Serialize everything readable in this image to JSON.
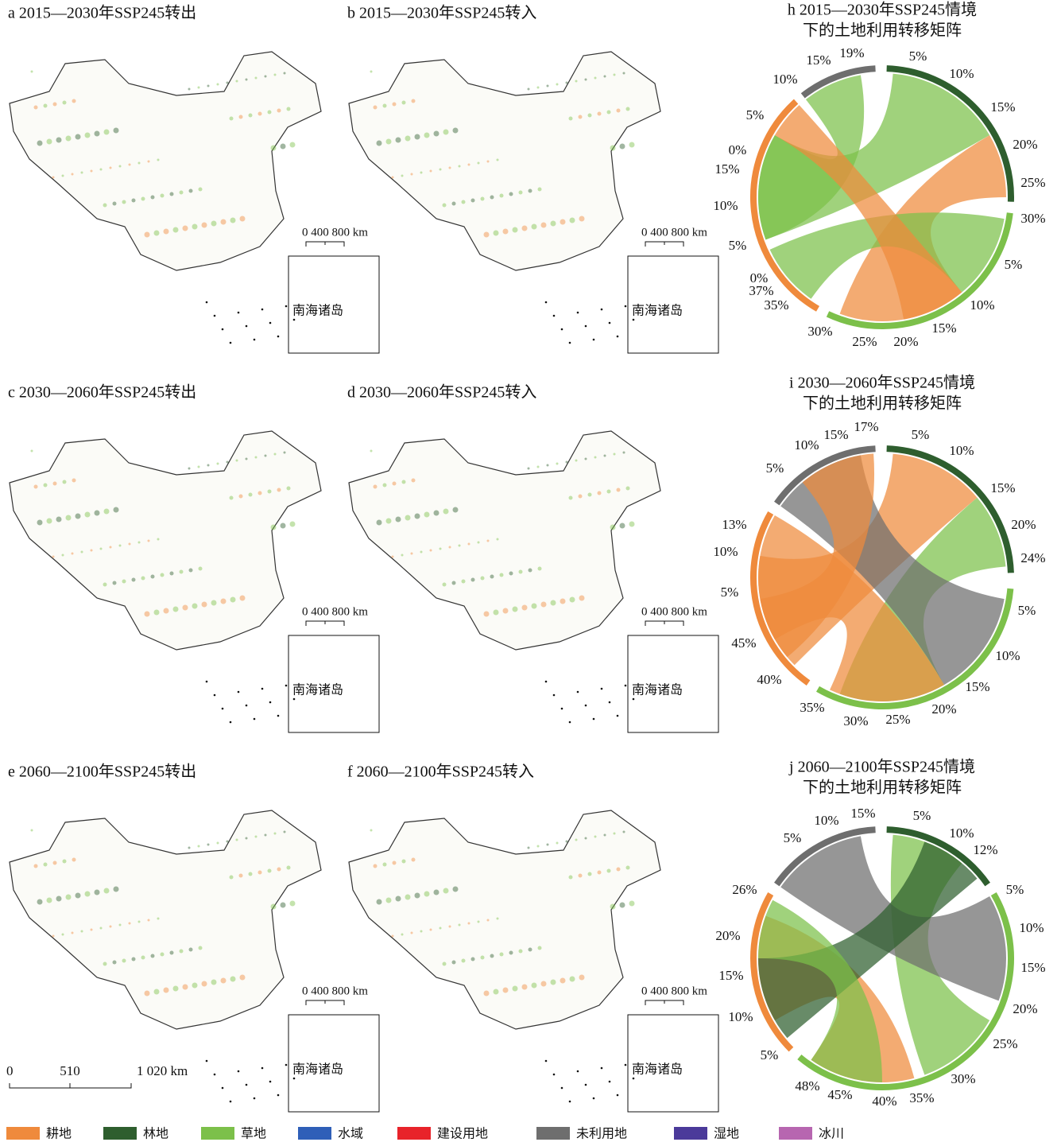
{
  "figure": {
    "maps": [
      {
        "label": "a 2015—2030年SSP245转出",
        "scale": "0 400 800 km",
        "inset": "南海诸岛"
      },
      {
        "label": "b 2015—2030年SSP245转入",
        "scale": "0 400 800 km",
        "inset": "南海诸岛"
      },
      {
        "label": "c 2030—2060年SSP245转出",
        "scale": "0 400 800 km",
        "inset": "南海诸岛"
      },
      {
        "label": "d 2030—2060年SSP245转入",
        "scale": "0 400 800 km",
        "inset": "南海诸岛"
      },
      {
        "label": "e 2060—2100年SSP245转出",
        "scale": "0 400 800 km",
        "inset": "南海诸岛"
      },
      {
        "label": "f 2060—2100年SSP245转入",
        "scale": "0 400 800 km",
        "inset": "南海诸岛"
      }
    ],
    "main_scale": [
      "0",
      "510",
      "1 020 km"
    ],
    "chords": [
      {
        "title": [
          "h 2015—2030年SSP245情境",
          "下的土地利用转移矩阵"
        ],
        "tick_labels": [
          "19%",
          "5%",
          "15%",
          "10%",
          "10%",
          "15%",
          "5%",
          "20%",
          "0%",
          "15%",
          "25%",
          "10%",
          "30%",
          "5%",
          "5%",
          "0%",
          "37%",
          "35%",
          "10%",
          "15%",
          "30%",
          "25%",
          "20%"
        ]
      },
      {
        "title": [
          "i 2030—2060年SSP245情境",
          "下的土地利用转移矩阵"
        ],
        "tick_labels": [
          "17%",
          "15%",
          "5%",
          "10%",
          "10%",
          "5%",
          "15%",
          "13%",
          "20%",
          "10%",
          "24%",
          "5%",
          "5%",
          "45%",
          "10%",
          "40%",
          "15%",
          "35%",
          "20%",
          "30%",
          "25%"
        ]
      },
      {
        "title": [
          "j 2060—2100年SSP245情境",
          "下的土地利用转移矩阵"
        ],
        "tick_labels": [
          "15%",
          "10%",
          "5%",
          "5%",
          "10%",
          "12%",
          "5%",
          "26%",
          "10%",
          "20%",
          "15%",
          "15%",
          "20%",
          "10%",
          "25%",
          "5%",
          "30%",
          "48%",
          "45%",
          "40%",
          "35%"
        ]
      }
    ],
    "legend": [
      {
        "name": "耕地",
        "color": "#ef8a3c"
      },
      {
        "name": "林地",
        "color": "#2e5e2e"
      },
      {
        "name": "草地",
        "color": "#7cc04a"
      },
      {
        "name": "水域",
        "color": "#2f5fb8"
      },
      {
        "name": "建设用地",
        "color": "#e8232a"
      },
      {
        "name": "未利用地",
        "color": "#6e6e6e"
      },
      {
        "name": "湿地",
        "color": "#4b3a9a"
      },
      {
        "name": "冰川",
        "color": "#b766b0"
      }
    ]
  }
}
